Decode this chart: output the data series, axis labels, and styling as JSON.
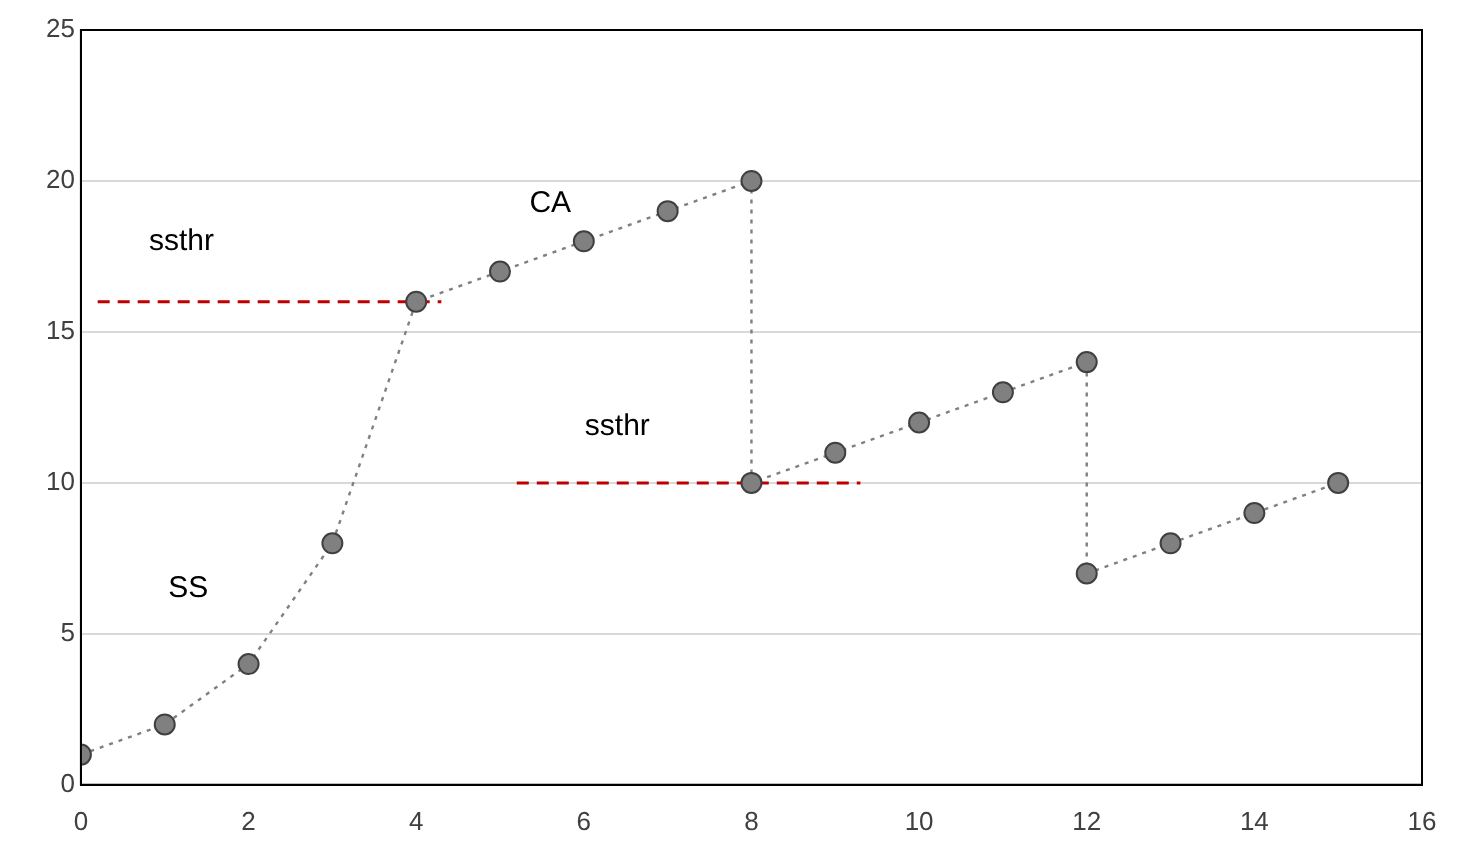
{
  "chart_data": {
    "type": "line",
    "xlim": [
      0,
      16
    ],
    "xticks": [
      0,
      2,
      4,
      6,
      8,
      10,
      12,
      14,
      16
    ],
    "ylim": [
      0,
      25
    ],
    "yticks": [
      0,
      5,
      10,
      15,
      20,
      25
    ],
    "grid": "y",
    "marker": "circle",
    "line_style": "dotted",
    "series": [
      {
        "color": "#808080",
        "x": [
          0,
          1,
          2,
          3,
          4,
          5,
          6,
          7,
          8,
          8,
          9,
          10,
          11,
          12,
          12,
          13,
          14,
          15
        ],
        "values": [
          1,
          2,
          4,
          8,
          16,
          17,
          18,
          19,
          20,
          10,
          11,
          12,
          13,
          14,
          7,
          8,
          9,
          10
        ]
      },
      {
        "color": "#c00000",
        "marker": "none",
        "line_style": "dashed",
        "x": [
          0.2,
          4.3
        ],
        "values": [
          16,
          16
        ]
      },
      {
        "color": "#c00000",
        "marker": "none",
        "line_style": "dashed",
        "x": [
          5.2,
          9.3
        ],
        "values": [
          10,
          10
        ]
      }
    ],
    "annotations": [
      "ssthr",
      "CA",
      "ssthr",
      "SS"
    ]
  }
}
